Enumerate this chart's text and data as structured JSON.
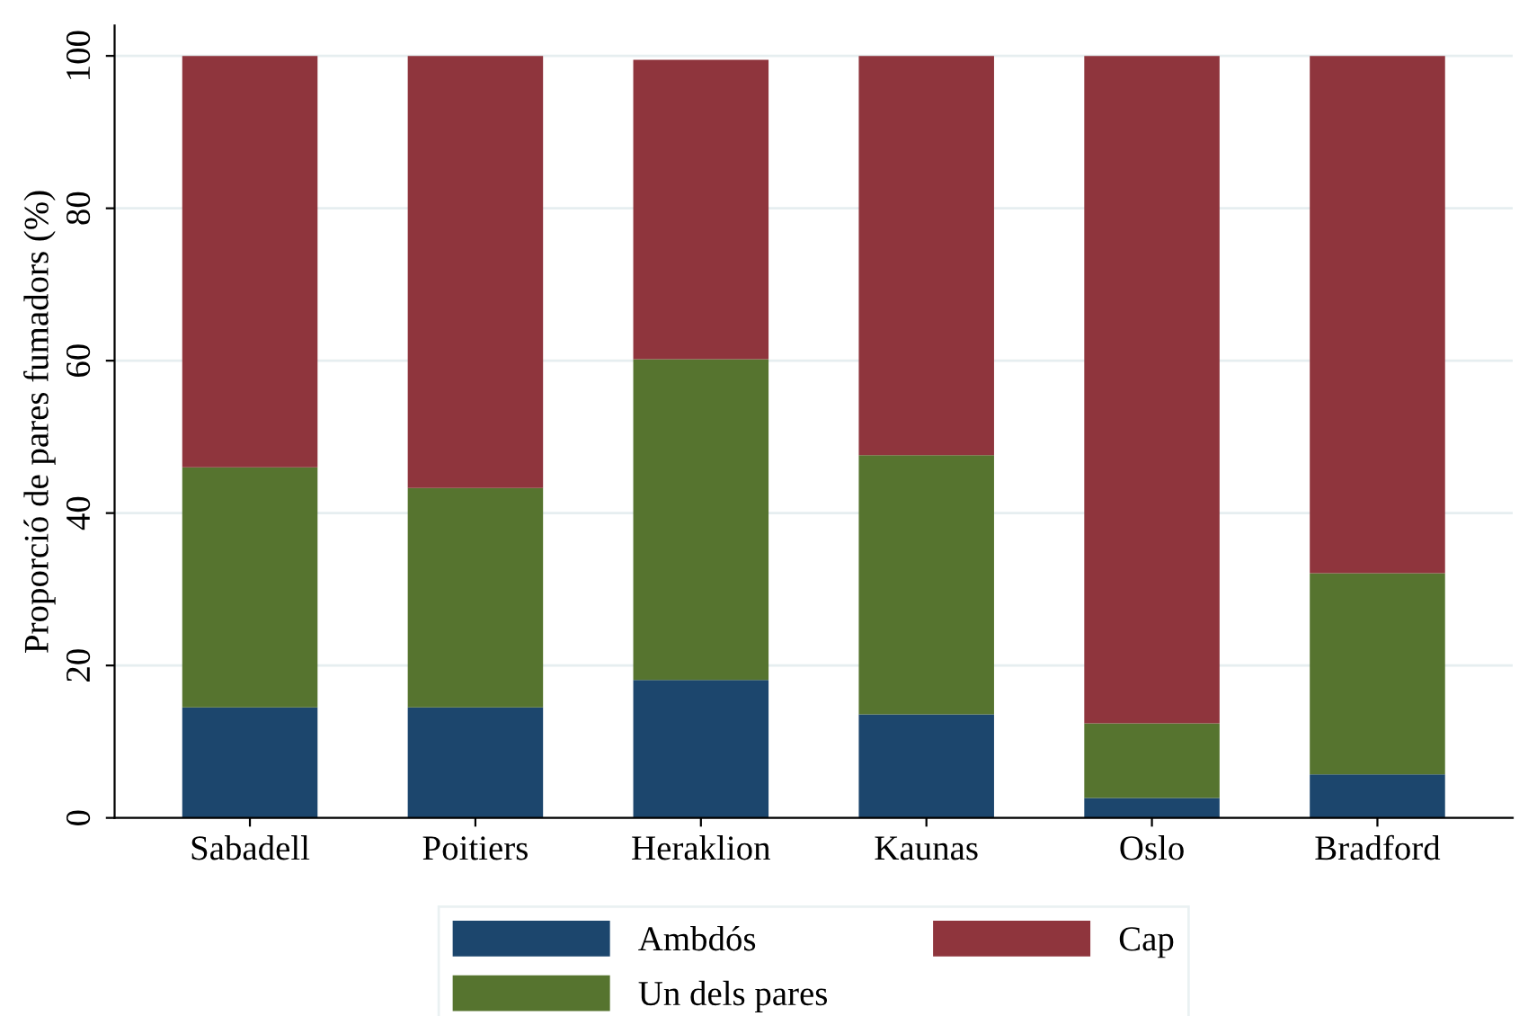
{
  "chart_data": {
    "type": "bar",
    "stacked": true,
    "ylabel": "Proporció de pares fumadors (%)",
    "categories": [
      "Sabadell",
      "Poitiers",
      "Heraklion",
      "Kaunas",
      "Oslo",
      "Bradford"
    ],
    "series": [
      {
        "name": "Ambdós",
        "color": "#1c466d",
        "values": [
          14.5,
          14.5,
          18.1,
          13.6,
          2.6,
          5.7
        ]
      },
      {
        "name": "Un dels pares",
        "color": "#56742f",
        "values": [
          31.5,
          28.8,
          42.1,
          34.0,
          9.8,
          26.4
        ]
      },
      {
        "name": "Cap",
        "color": "#8f353d",
        "values": [
          54.0,
          56.7,
          39.3,
          52.4,
          87.6,
          67.9
        ]
      }
    ],
    "ylim": [
      0,
      104
    ],
    "yticks": [
      0,
      20,
      40,
      60,
      80,
      100
    ],
    "grid": "y",
    "legend": "bottom"
  }
}
